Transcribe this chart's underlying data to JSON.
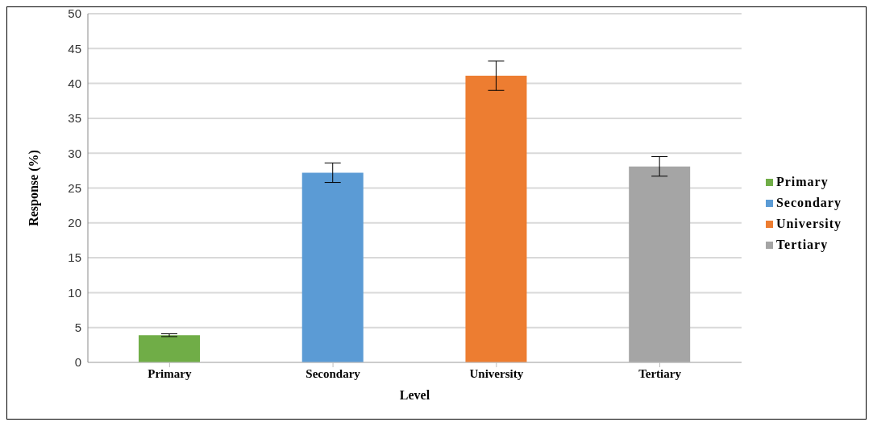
{
  "chart_data": {
    "type": "bar",
    "xlabel": "Level",
    "ylabel": "Response (%)",
    "categories": [
      "Primary",
      "Secondary",
      "University",
      "Tertiary"
    ],
    "series": [
      {
        "name": "Primary",
        "color": "#70ad47",
        "values": [
          3.9,
          null,
          null,
          null
        ],
        "errors": [
          0.2,
          null,
          null,
          null
        ]
      },
      {
        "name": "Secondary",
        "color": "#5b9bd5",
        "values": [
          null,
          27.2,
          null,
          null
        ],
        "errors": [
          null,
          1.4,
          null,
          null
        ]
      },
      {
        "name": "University",
        "color": "#ed7d31",
        "values": [
          null,
          null,
          41.1,
          null
        ],
        "errors": [
          null,
          null,
          2.1,
          null
        ]
      },
      {
        "name": "Tertiary",
        "color": "#a5a5a5",
        "values": [
          null,
          null,
          null,
          28.1
        ],
        "errors": [
          null,
          null,
          null,
          1.4
        ]
      }
    ],
    "ylim": [
      0,
      50
    ],
    "yticks": [
      0,
      5,
      10,
      15,
      20,
      25,
      30,
      35,
      40,
      45,
      50
    ],
    "grid": "y",
    "legend": "right"
  }
}
